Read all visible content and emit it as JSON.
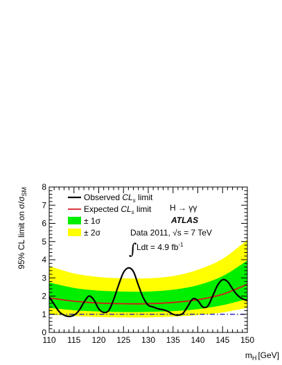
{
  "chart_data": {
    "type": "line",
    "title": "",
    "xlabel": "m",
    "xlabel_sub": "H",
    "xlabel_unit": "[GeV]",
    "ylabel": "95% CL limit on σ/σ",
    "ylabel_sub": "SM",
    "xlim": [
      110,
      150
    ],
    "ylim": [
      0,
      8
    ],
    "x_ticks": [
      110,
      115,
      120,
      125,
      130,
      135,
      140,
      145,
      150
    ],
    "y_ticks": [
      0,
      1,
      2,
      3,
      4,
      5,
      6,
      7,
      8
    ],
    "grid": false,
    "legend_position": "top-left",
    "legend": [
      {
        "key": "observed",
        "label": "Observed ",
        "label_italic": "CL",
        "label_sub": "s",
        "label_tail": " limit",
        "color": "#000000",
        "style": "line"
      },
      {
        "key": "expected",
        "label": "Expected ",
        "label_italic": "CL",
        "label_sub": "s",
        "label_tail": " limit",
        "color": "#d7191c",
        "style": "line"
      },
      {
        "key": "band1",
        "label": "± 1σ",
        "color": "#00ee00",
        "style": "box"
      },
      {
        "key": "band2",
        "label": "± 2σ",
        "color": "#ffff00",
        "style": "box"
      }
    ],
    "annotations": {
      "process": "H → γγ",
      "experiment": "ATLAS",
      "dataset": "Data 2011, √s = 7 TeV",
      "lumi_integral": "∫",
      "lumi_text": "Ldt = 4.9 fb",
      "lumi_sup": "-1"
    },
    "reference_line": {
      "y": 1,
      "color": "#0000cc",
      "style": "dash-dot"
    },
    "series": [
      {
        "name": "Observed CLs limit",
        "color": "#000000",
        "x": [
          110,
          111,
          112,
          113,
          114,
          115,
          116,
          117,
          118,
          119,
          120,
          121,
          122,
          123,
          124,
          125,
          126,
          127,
          128,
          129,
          130,
          131,
          132,
          133,
          134,
          135,
          136,
          137,
          138,
          139,
          140,
          141,
          142,
          143,
          144,
          145,
          146,
          147,
          148,
          149,
          150
        ],
        "y": [
          1.95,
          1.55,
          1.15,
          0.95,
          0.88,
          0.95,
          1.2,
          1.65,
          2.0,
          1.8,
          1.3,
          1.1,
          1.2,
          1.8,
          2.6,
          3.3,
          3.55,
          3.35,
          2.6,
          1.9,
          1.5,
          1.4,
          1.3,
          1.25,
          1.15,
          1.0,
          0.95,
          1.05,
          1.45,
          1.85,
          1.75,
          1.4,
          1.45,
          2.0,
          2.6,
          2.9,
          2.8,
          2.4,
          2.05,
          1.85,
          1.75
        ]
      },
      {
        "name": "Expected CLs limit",
        "color": "#d7191c",
        "x": [
          110,
          115,
          120,
          125,
          130,
          135,
          140,
          145,
          150
        ],
        "y": [
          1.9,
          1.72,
          1.62,
          1.58,
          1.58,
          1.65,
          1.8,
          2.1,
          2.65
        ]
      }
    ],
    "bands": {
      "x": [
        110,
        115,
        120,
        125,
        130,
        135,
        140,
        145,
        150
      ],
      "sigma1_low": [
        1.35,
        1.22,
        1.15,
        1.12,
        1.13,
        1.17,
        1.28,
        1.5,
        1.85
      ],
      "sigma1_high": [
        2.75,
        2.45,
        2.3,
        2.25,
        2.25,
        2.35,
        2.6,
        3.1,
        3.95
      ],
      "sigma2_low": [
        0.98,
        0.9,
        0.85,
        0.83,
        0.83,
        0.87,
        0.95,
        1.1,
        1.35
      ],
      "sigma2_high": [
        3.65,
        3.25,
        3.05,
        2.98,
        2.98,
        3.1,
        3.45,
        4.05,
        5.1
      ]
    }
  }
}
